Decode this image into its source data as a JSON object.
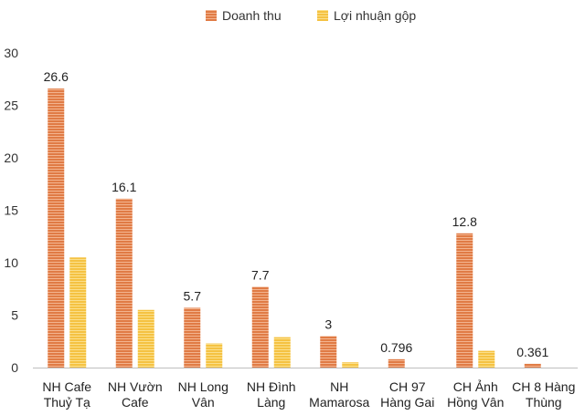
{
  "chart_data": {
    "type": "bar",
    "title": "",
    "xlabel": "",
    "ylabel": "",
    "ylim": [
      0,
      30
    ],
    "yticks": [
      0,
      5,
      10,
      15,
      20,
      25,
      30
    ],
    "grid": false,
    "legend_position": "top-center",
    "categories": [
      [
        "NH Cafe",
        "Thuỷ Tạ"
      ],
      [
        "NH Vườn",
        "Cafe"
      ],
      [
        "NH Long",
        "Vân"
      ],
      [
        "NH Đình",
        "Làng"
      ],
      [
        "NH",
        "Mamarosa"
      ],
      [
        "CH 97",
        "Hàng Gai"
      ],
      [
        "CH Ảnh",
        "Hồng Vân"
      ],
      [
        "CH 8 Hàng",
        "Thùng"
      ]
    ],
    "series": [
      {
        "name": "Doanh thu",
        "color": "#E07B45",
        "values": [
          26.6,
          16.1,
          5.7,
          7.7,
          3,
          0.796,
          12.8,
          0.361
        ],
        "labels": [
          "26.6",
          "16.1",
          "5.7",
          "7.7",
          "3",
          "0.796",
          "12.8",
          "0.361"
        ]
      },
      {
        "name": "Lợi nhuận gộp",
        "color": "#F5C242",
        "values": [
          10.5,
          5.5,
          2.3,
          2.9,
          0.5,
          0,
          1.6,
          0
        ]
      }
    ]
  }
}
